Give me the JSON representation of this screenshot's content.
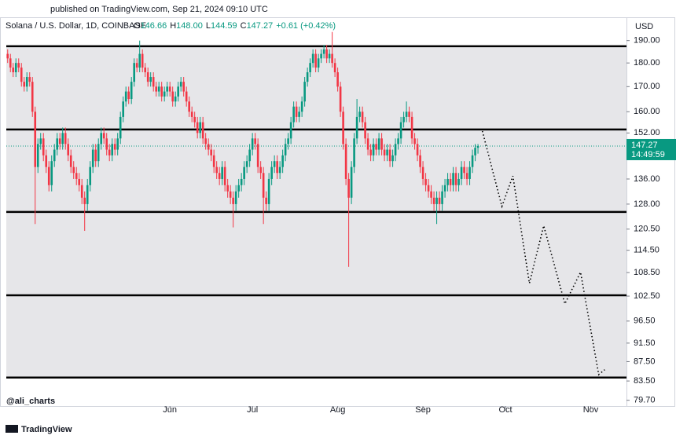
{
  "header": {
    "published": "published on TradingView.com, Sep 21, 2024 09:10 UTC"
  },
  "legend": {
    "symbol": "Solana / U.S. Dollar, 1D, COINBASE",
    "o_label": "O",
    "open": "146.66",
    "h_label": "H",
    "high": "148.00",
    "l_label": "L",
    "low": "144.59",
    "c_label": "C",
    "close": "147.27",
    "change": "+0.61 (+0.42%)"
  },
  "watermark": "@ali_charts",
  "footer": "TradingView",
  "currency": "USD",
  "chart_data": {
    "type": "candlestick",
    "log_scale": true,
    "up_color": "#089981",
    "down_color": "#f23645",
    "ylim": [
      78.6,
      201
    ],
    "yticks": [
      {
        "value": 190,
        "label": "190.00"
      },
      {
        "value": 180,
        "label": "180.00"
      },
      {
        "value": 170,
        "label": "170.00"
      },
      {
        "value": 160,
        "label": "160.00"
      },
      {
        "value": 152,
        "label": "152.00"
      },
      {
        "value": 136,
        "label": "136.00"
      },
      {
        "value": 128,
        "label": "128.00"
      },
      {
        "value": 120.5,
        "label": "120.50"
      },
      {
        "value": 114.5,
        "label": "114.50"
      },
      {
        "value": 108.5,
        "label": "108.50"
      },
      {
        "value": 102.5,
        "label": "102.50"
      },
      {
        "value": 96.5,
        "label": "96.50"
      },
      {
        "value": 91.5,
        "label": "91.50"
      },
      {
        "value": 87.5,
        "label": "87.50"
      },
      {
        "value": 83.5,
        "label": "83.50"
      },
      {
        "value": 79.7,
        "label": "79.70"
      }
    ],
    "xlim": [
      -0.5,
      225
    ],
    "xticks": [
      {
        "value": 59,
        "label": "Jun"
      },
      {
        "value": 89,
        "label": "Jul"
      },
      {
        "value": 120,
        "label": "Aug"
      },
      {
        "value": 151,
        "label": "Sep"
      },
      {
        "value": 181,
        "label": "Oct"
      },
      {
        "value": 212,
        "label": "Nov"
      }
    ],
    "open": [
      184,
      182,
      178,
      176,
      180,
      178,
      172,
      170,
      174,
      172,
      160,
      140,
      148,
      150,
      144,
      140,
      134,
      142,
      146,
      150,
      148,
      152,
      148,
      144,
      140,
      138,
      136,
      134,
      130,
      128,
      134,
      140,
      146,
      142,
      148,
      152,
      150,
      146,
      144,
      148,
      146,
      150,
      158,
      164,
      168,
      165,
      172,
      180,
      178,
      184,
      178,
      176,
      172,
      174,
      170,
      168,
      170,
      166,
      168,
      170,
      168,
      164,
      166,
      170,
      172,
      168,
      164,
      160,
      158,
      156,
      152,
      156,
      150,
      148,
      146,
      144,
      140,
      138,
      136,
      140,
      134,
      132,
      130,
      128,
      132,
      134,
      136,
      140,
      142,
      146,
      150,
      148,
      140,
      138,
      130,
      128,
      136,
      140,
      142,
      138,
      140,
      144,
      148,
      150,
      156,
      162,
      158,
      160,
      164,
      172,
      176,
      180,
      184,
      178,
      182,
      184,
      186,
      182,
      184,
      180,
      176,
      170,
      160,
      148,
      136,
      130,
      140,
      150,
      158,
      160,
      156,
      150,
      146,
      144,
      148,
      146,
      150,
      146,
      144,
      146,
      142,
      144,
      148,
      150,
      156,
      158,
      160,
      158,
      150,
      148,
      144,
      140,
      136,
      134,
      132,
      130,
      128,
      130,
      128,
      132,
      134,
      136,
      134,
      138,
      134,
      136,
      140,
      138,
      136,
      140,
      144,
      146.66
    ],
    "high": [
      186,
      184,
      180,
      182,
      182,
      180,
      174,
      176,
      176,
      174,
      162,
      150,
      152,
      152,
      146,
      142,
      144,
      148,
      152,
      152,
      154,
      154,
      150,
      146,
      142,
      140,
      138,
      136,
      132,
      136,
      142,
      148,
      148,
      150,
      154,
      154,
      152,
      148,
      150,
      150,
      152,
      160,
      166,
      170,
      170,
      174,
      182,
      182,
      190,
      186,
      180,
      178,
      176,
      176,
      172,
      172,
      172,
      170,
      172,
      172,
      170,
      168,
      172,
      174,
      174,
      170,
      166,
      162,
      160,
      158,
      158,
      158,
      152,
      150,
      148,
      146,
      142,
      140,
      142,
      142,
      136,
      134,
      132,
      134,
      136,
      138,
      142,
      144,
      148,
      152,
      152,
      150,
      142,
      140,
      132,
      138,
      142,
      144,
      144,
      142,
      146,
      150,
      152,
      158,
      164,
      164,
      162,
      166,
      174,
      178,
      182,
      186,
      186,
      184,
      186,
      188,
      188,
      186,
      194,
      182,
      178,
      172,
      162,
      150,
      138,
      142,
      152,
      165,
      162,
      162,
      158,
      152,
      148,
      150,
      150,
      152,
      152,
      148,
      148,
      148,
      146,
      150,
      152,
      158,
      160,
      164,
      162,
      160,
      152,
      150,
      146,
      142,
      138,
      136,
      134,
      132,
      132,
      132,
      134,
      136,
      138,
      138,
      140,
      140,
      138,
      142,
      142,
      140,
      142,
      146,
      148,
      148.0
    ],
    "low": [
      180,
      176,
      174,
      174,
      176,
      170,
      168,
      168,
      170,
      158,
      122,
      138,
      146,
      142,
      138,
      132,
      132,
      140,
      144,
      146,
      146,
      146,
      142,
      138,
      136,
      134,
      132,
      128,
      120,
      126,
      132,
      138,
      140,
      140,
      146,
      148,
      144,
      142,
      142,
      144,
      144,
      148,
      156,
      162,
      163,
      163,
      170,
      176,
      176,
      176,
      174,
      170,
      170,
      168,
      166,
      166,
      164,
      164,
      166,
      166,
      162,
      162,
      164,
      168,
      166,
      162,
      158,
      156,
      154,
      150,
      150,
      148,
      146,
      144,
      142,
      138,
      136,
      134,
      134,
      132,
      130,
      128,
      121,
      126,
      130,
      132,
      134,
      138,
      140,
      144,
      146,
      138,
      136,
      122,
      126,
      126,
      134,
      138,
      136,
      136,
      138,
      142,
      146,
      148,
      154,
      156,
      156,
      158,
      162,
      170,
      174,
      178,
      176,
      176,
      180,
      182,
      180,
      180,
      178,
      174,
      168,
      158,
      146,
      134,
      110,
      128,
      138,
      148,
      156,
      154,
      148,
      144,
      142,
      142,
      144,
      144,
      144,
      142,
      142,
      140,
      140,
      142,
      146,
      148,
      154,
      156,
      156,
      148,
      146,
      142,
      138,
      134,
      132,
      130,
      128,
      126,
      122,
      126,
      126,
      130,
      132,
      132,
      132,
      132,
      132,
      134,
      136,
      134,
      134,
      138,
      142,
      144.59
    ],
    "close": [
      182,
      178,
      176,
      180,
      178,
      172,
      170,
      174,
      172,
      160,
      140,
      148,
      150,
      144,
      140,
      134,
      142,
      146,
      150,
      148,
      152,
      148,
      144,
      140,
      138,
      136,
      134,
      130,
      128,
      134,
      140,
      146,
      142,
      148,
      152,
      150,
      146,
      144,
      148,
      146,
      150,
      158,
      164,
      168,
      165,
      172,
      180,
      178,
      184,
      178,
      176,
      172,
      174,
      170,
      168,
      170,
      166,
      168,
      170,
      168,
      164,
      166,
      170,
      172,
      168,
      164,
      160,
      158,
      156,
      152,
      156,
      150,
      148,
      146,
      144,
      140,
      138,
      136,
      140,
      134,
      132,
      130,
      128,
      132,
      134,
      136,
      140,
      142,
      146,
      150,
      148,
      140,
      138,
      130,
      128,
      136,
      140,
      142,
      138,
      140,
      144,
      148,
      150,
      156,
      162,
      158,
      160,
      164,
      172,
      176,
      180,
      184,
      178,
      182,
      184,
      186,
      182,
      184,
      180,
      176,
      170,
      160,
      148,
      136,
      130,
      140,
      150,
      158,
      160,
      156,
      150,
      146,
      144,
      148,
      146,
      150,
      146,
      144,
      146,
      142,
      144,
      148,
      150,
      156,
      158,
      160,
      158,
      150,
      148,
      144,
      140,
      136,
      134,
      132,
      130,
      128,
      130,
      128,
      132,
      134,
      136,
      134,
      138,
      134,
      136,
      140,
      138,
      136,
      140,
      144,
      146.66,
      147.27
    ],
    "levels": [
      187.4,
      153.3,
      125.6,
      102.7,
      84.2
    ],
    "last_price": {
      "value": 147.27,
      "countdown": "14:49:59"
    },
    "projection": {
      "x": [
        172.6,
        179.7,
        183.7,
        189.7,
        194.9,
        202.6,
        208.3,
        214.9,
        217.1
      ],
      "y": [
        152.7,
        127.3,
        137.0,
        105.7,
        121.5,
        100.6,
        108.6,
        84.8,
        85.8
      ]
    }
  }
}
